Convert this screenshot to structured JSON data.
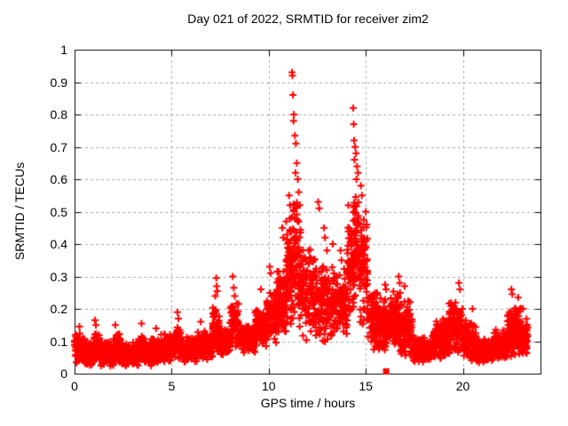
{
  "window": {
    "background_color": "#ffffff",
    "text_color": "#000000"
  },
  "chart_data": {
    "type": "scatter",
    "title": "Day 021 of 2022, SRMTID for receiver zim2",
    "xlabel": "GPS time / hours",
    "ylabel": "SRMTID / TECUs",
    "xlim": [
      0,
      24
    ],
    "ylim": [
      0,
      1
    ],
    "xtick_values": [
      0,
      5,
      10,
      15,
      20
    ],
    "xtick_labels": [
      "0",
      "5",
      "10",
      "15",
      "20"
    ],
    "ytick_values": [
      0,
      0.1,
      0.2,
      0.3,
      0.4,
      0.5,
      0.6,
      0.7,
      0.8,
      0.9,
      1
    ],
    "ytick_labels": [
      "0",
      "0.1",
      "0.2",
      "0.3",
      "0.4",
      "0.5",
      "0.6",
      "0.7",
      "0.8",
      "0.9",
      "1"
    ],
    "grid": {
      "visible": true,
      "style": "dashed",
      "color": "#a8a8a8"
    },
    "border_color": "#000000",
    "legend": "none",
    "series": [
      {
        "name": "srmtid",
        "marker": "plus",
        "color": "#ff0000",
        "description": "Dense 30-s SRMTID time series; band_segments give [t_start, t_end, y_min, y_max, n_points] envelopes read from the plot; outlier_points are the visible large excursions [t, y].",
        "band_segments": [
          [
            0.0,
            0.5,
            0.03,
            0.13,
            90
          ],
          [
            0.5,
            1.0,
            0.02,
            0.1,
            90
          ],
          [
            1.0,
            1.3,
            0.03,
            0.14,
            55
          ],
          [
            1.3,
            2.0,
            0.02,
            0.1,
            120
          ],
          [
            2.0,
            2.4,
            0.03,
            0.13,
            70
          ],
          [
            2.4,
            3.3,
            0.02,
            0.1,
            150
          ],
          [
            3.3,
            3.6,
            0.03,
            0.13,
            55
          ],
          [
            3.6,
            4.4,
            0.02,
            0.11,
            135
          ],
          [
            4.4,
            5.1,
            0.03,
            0.13,
            115
          ],
          [
            5.1,
            5.5,
            0.04,
            0.16,
            60
          ],
          [
            5.5,
            6.3,
            0.03,
            0.12,
            130
          ],
          [
            6.3,
            6.7,
            0.04,
            0.14,
            60
          ],
          [
            6.7,
            7.1,
            0.04,
            0.13,
            60
          ],
          [
            7.1,
            7.45,
            0.06,
            0.22,
            55
          ],
          [
            7.45,
            8.0,
            0.05,
            0.14,
            85
          ],
          [
            8.0,
            8.45,
            0.07,
            0.24,
            65
          ],
          [
            8.45,
            9.3,
            0.06,
            0.16,
            130
          ],
          [
            9.3,
            9.9,
            0.08,
            0.2,
            90
          ],
          [
            9.9,
            10.4,
            0.08,
            0.26,
            80
          ],
          [
            10.4,
            10.9,
            0.1,
            0.34,
            80
          ],
          [
            10.9,
            11.2,
            0.12,
            0.48,
            60
          ],
          [
            11.2,
            11.55,
            0.14,
            0.58,
            70
          ],
          [
            11.55,
            11.9,
            0.11,
            0.46,
            60
          ],
          [
            11.9,
            12.4,
            0.09,
            0.4,
            75
          ],
          [
            12.4,
            12.9,
            0.08,
            0.37,
            75
          ],
          [
            12.9,
            13.5,
            0.09,
            0.35,
            90
          ],
          [
            13.5,
            14.05,
            0.1,
            0.33,
            85
          ],
          [
            14.05,
            14.35,
            0.14,
            0.5,
            55
          ],
          [
            14.35,
            14.7,
            0.18,
            0.58,
            70
          ],
          [
            14.7,
            15.1,
            0.13,
            0.5,
            65
          ],
          [
            15.1,
            15.6,
            0.07,
            0.28,
            80
          ],
          [
            15.6,
            16.1,
            0.05,
            0.24,
            80
          ],
          [
            16.1,
            16.8,
            0.05,
            0.26,
            110
          ],
          [
            16.8,
            17.4,
            0.05,
            0.23,
            95
          ],
          [
            17.4,
            18.4,
            0.03,
            0.12,
            160
          ],
          [
            18.4,
            19.3,
            0.04,
            0.17,
            140
          ],
          [
            19.3,
            20.0,
            0.05,
            0.23,
            110
          ],
          [
            20.0,
            20.7,
            0.04,
            0.17,
            110
          ],
          [
            20.7,
            21.6,
            0.03,
            0.11,
            140
          ],
          [
            21.6,
            22.3,
            0.04,
            0.14,
            110
          ],
          [
            22.3,
            23.0,
            0.05,
            0.21,
            110
          ],
          [
            23.0,
            23.35,
            0.04,
            0.18,
            60
          ]
        ],
        "outlier_points": [
          [
            0.25,
            0.145
          ],
          [
            1.05,
            0.165
          ],
          [
            1.1,
            0.15
          ],
          [
            2.1,
            0.15
          ],
          [
            3.45,
            0.155
          ],
          [
            4.2,
            0.14
          ],
          [
            5.3,
            0.19
          ],
          [
            5.35,
            0.17
          ],
          [
            6.5,
            0.16
          ],
          [
            7.25,
            0.24
          ],
          [
            7.3,
            0.295
          ],
          [
            7.32,
            0.27
          ],
          [
            7.35,
            0.255
          ],
          [
            8.15,
            0.3
          ],
          [
            8.2,
            0.265
          ],
          [
            8.25,
            0.24
          ],
          [
            9.6,
            0.26
          ],
          [
            10.05,
            0.33
          ],
          [
            10.1,
            0.31
          ],
          [
            10.7,
            0.45
          ],
          [
            10.75,
            0.42
          ],
          [
            10.9,
            0.47
          ],
          [
            11.05,
            0.55
          ],
          [
            11.1,
            0.52
          ],
          [
            11.2,
            0.93
          ],
          [
            11.22,
            0.92
          ],
          [
            11.25,
            0.86
          ],
          [
            11.3,
            0.8
          ],
          [
            11.28,
            0.78
          ],
          [
            11.35,
            0.735
          ],
          [
            11.4,
            0.71
          ],
          [
            11.45,
            0.65
          ],
          [
            11.38,
            0.62
          ],
          [
            11.5,
            0.6
          ],
          [
            11.55,
            0.56
          ],
          [
            11.6,
            0.52
          ],
          [
            12.55,
            0.53
          ],
          [
            12.6,
            0.51
          ],
          [
            12.85,
            0.45
          ],
          [
            12.9,
            0.42
          ],
          [
            13.0,
            0.38
          ],
          [
            13.3,
            0.4
          ],
          [
            13.7,
            0.38
          ],
          [
            13.75,
            0.35
          ],
          [
            14.1,
            0.52
          ],
          [
            14.35,
            0.82
          ],
          [
            14.38,
            0.77
          ],
          [
            14.4,
            0.72
          ],
          [
            14.45,
            0.7
          ],
          [
            14.5,
            0.68
          ],
          [
            14.42,
            0.66
          ],
          [
            14.55,
            0.64
          ],
          [
            14.6,
            0.62
          ],
          [
            14.52,
            0.6
          ],
          [
            14.75,
            0.58
          ],
          [
            14.8,
            0.55
          ],
          [
            15.0,
            0.5
          ],
          [
            15.05,
            0.46
          ],
          [
            16.0,
            0.275
          ],
          [
            16.05,
            0.26
          ],
          [
            16.7,
            0.3
          ],
          [
            16.75,
            0.28
          ],
          [
            17.0,
            0.27
          ],
          [
            19.8,
            0.28
          ],
          [
            19.85,
            0.26
          ],
          [
            20.5,
            0.2
          ],
          [
            22.5,
            0.26
          ],
          [
            22.55,
            0.245
          ],
          [
            22.85,
            0.235
          ],
          [
            23.1,
            0.2
          ]
        ]
      },
      {
        "name": "event-marker",
        "marker": "filled-square",
        "color": "#ff0000",
        "points": [
          [
            16.05,
            0.007
          ]
        ]
      }
    ],
    "random_seed": 20220121
  }
}
